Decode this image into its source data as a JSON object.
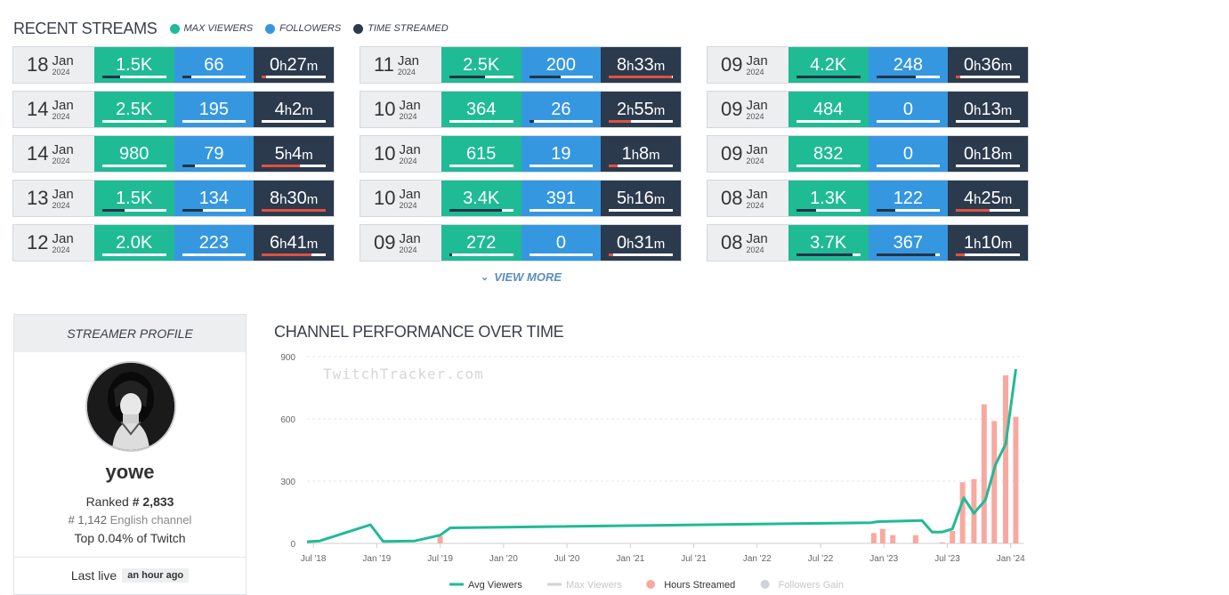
{
  "recent": {
    "title": "RECENT STREAMS",
    "legend": [
      {
        "label": "MAX VIEWERS",
        "color": "#1fbb95"
      },
      {
        "label": "FOLLOWERS",
        "color": "#3597e0"
      },
      {
        "label": "TIME STREAMED",
        "color": "#2c3a4e"
      }
    ],
    "streams": [
      {
        "day": "18",
        "mon": "Jan",
        "yr": "2024",
        "maxv": "1.5K",
        "maxv_pct": 0.28,
        "fol": "66",
        "fol_pct": 0.15,
        "h": "0",
        "m": "27",
        "time_pct": 0.06
      },
      {
        "day": "11",
        "mon": "Jan",
        "yr": "2024",
        "maxv": "2.5K",
        "maxv_pct": 0.56,
        "fol": "200",
        "fol_pct": 0.5,
        "h": "8",
        "m": "33",
        "time_pct": 0.98
      },
      {
        "day": "09",
        "mon": "Jan",
        "yr": "2024",
        "maxv": "4.2K",
        "maxv_pct": 1.0,
        "fol": "248",
        "fol_pct": 0.62,
        "h": "0",
        "m": "36",
        "time_pct": 0.07
      },
      {
        "day": "14",
        "mon": "Jan",
        "yr": "2024",
        "maxv": "2.5K",
        "maxv_pct": 0.0,
        "fol": "195",
        "fol_pct": 0.0,
        "h": "4",
        "m": "2",
        "time_pct": 0.0
      },
      {
        "day": "10",
        "mon": "Jan",
        "yr": "2024",
        "maxv": "364",
        "maxv_pct": 0.0,
        "fol": "26",
        "fol_pct": 0.07,
        "h": "2",
        "m": "55",
        "time_pct": 0.34
      },
      {
        "day": "09",
        "mon": "Jan",
        "yr": "2024",
        "maxv": "484",
        "maxv_pct": 0.0,
        "fol": "0",
        "fol_pct": 0.0,
        "h": "0",
        "m": "13",
        "time_pct": 0.0
      },
      {
        "day": "14",
        "mon": "Jan",
        "yr": "2024",
        "maxv": "980",
        "maxv_pct": 0.0,
        "fol": "79",
        "fol_pct": 0.2,
        "h": "5",
        "m": "4",
        "time_pct": 0.6
      },
      {
        "day": "10",
        "mon": "Jan",
        "yr": "2024",
        "maxv": "615",
        "maxv_pct": 0.0,
        "fol": "19",
        "fol_pct": 0.0,
        "h": "1",
        "m": "8",
        "time_pct": 0.13
      },
      {
        "day": "09",
        "mon": "Jan",
        "yr": "2024",
        "maxv": "832",
        "maxv_pct": 0.0,
        "fol": "0",
        "fol_pct": 0.0,
        "h": "0",
        "m": "18",
        "time_pct": 0.0
      },
      {
        "day": "13",
        "mon": "Jan",
        "yr": "2024",
        "maxv": "1.5K",
        "maxv_pct": 0.35,
        "fol": "134",
        "fol_pct": 0.33,
        "h": "8",
        "m": "30",
        "time_pct": 1.0
      },
      {
        "day": "10",
        "mon": "Jan",
        "yr": "2024",
        "maxv": "3.4K",
        "maxv_pct": 0.82,
        "fol": "391",
        "fol_pct": 0.0,
        "h": "5",
        "m": "16",
        "time_pct": 0.0
      },
      {
        "day": "08",
        "mon": "Jan",
        "yr": "2024",
        "maxv": "1.3K",
        "maxv_pct": 0.31,
        "fol": "122",
        "fol_pct": 0.3,
        "h": "4",
        "m": "25",
        "time_pct": 0.52
      },
      {
        "day": "12",
        "mon": "Jan",
        "yr": "2024",
        "maxv": "2.0K",
        "maxv_pct": 0.0,
        "fol": "223",
        "fol_pct": 0.0,
        "h": "6",
        "m": "41",
        "time_pct": 0.78
      },
      {
        "day": "09",
        "mon": "Jan",
        "yr": "2024",
        "maxv": "272",
        "maxv_pct": 0.05,
        "fol": "0",
        "fol_pct": 0.0,
        "h": "0",
        "m": "31",
        "time_pct": 0.06
      },
      {
        "day": "08",
        "mon": "Jan",
        "yr": "2024",
        "maxv": "3.7K",
        "maxv_pct": 0.88,
        "fol": "367",
        "fol_pct": 0.92,
        "h": "1",
        "m": "10",
        "time_pct": 0.13
      }
    ],
    "view_more": "VIEW MORE"
  },
  "profile": {
    "header": "STREAMER PROFILE",
    "name": "yowe",
    "ranked_label": "Ranked",
    "rank": "# 2,833",
    "lang_rank": "# 1,142",
    "lang_label": "English channel",
    "top": "Top 0.04% of Twitch",
    "last_live_label": "Last live",
    "last_live": "an hour ago"
  },
  "chart_title": "CHANNEL PERFORMANCE OVER TIME",
  "chart_data": {
    "type": "line",
    "watermark": "TwitchTracker.com",
    "y_ticks": [
      0,
      300,
      600,
      900
    ],
    "ylim": [
      0,
      900
    ],
    "x_ticks": [
      "Jul '18",
      "Jan '19",
      "Jul '19",
      "Jan '20",
      "Jul '20",
      "Jan '21",
      "Jul '21",
      "Jan '22",
      "Jul '22",
      "Jan '23",
      "Jul '23",
      "Jan '24"
    ],
    "x_range": [
      2018.45,
      2024.1
    ],
    "series": [
      {
        "name": "Avg Viewers",
        "color": "#1fbb95",
        "kind": "line",
        "points": [
          [
            2018.45,
            8
          ],
          [
            2018.55,
            12
          ],
          [
            2018.95,
            90
          ],
          [
            2019.05,
            10
          ],
          [
            2019.3,
            12
          ],
          [
            2019.5,
            40
          ],
          [
            2019.58,
            75
          ],
          [
            2022.9,
            100
          ],
          [
            2022.95,
            105
          ],
          [
            2023.3,
            110
          ],
          [
            2023.38,
            55
          ],
          [
            2023.46,
            55
          ],
          [
            2023.54,
            70
          ],
          [
            2023.63,
            220
          ],
          [
            2023.71,
            145
          ],
          [
            2023.8,
            210
          ],
          [
            2023.88,
            380
          ],
          [
            2023.96,
            480
          ],
          [
            2024.04,
            840
          ]
        ]
      },
      {
        "name": "Max Viewers",
        "color": "#cfd2d6",
        "kind": "hidden",
        "points": []
      },
      {
        "name": "Hours Streamed",
        "color": "#f7a9a0",
        "kind": "bar",
        "points": [
          [
            2019.5,
            35
          ],
          [
            2022.92,
            50
          ],
          [
            2022.99,
            70
          ],
          [
            2023.07,
            40
          ],
          [
            2023.25,
            40
          ],
          [
            2023.46,
            5
          ],
          [
            2023.54,
            60
          ],
          [
            2023.62,
            295
          ],
          [
            2023.71,
            310
          ],
          [
            2023.79,
            670
          ],
          [
            2023.87,
            590
          ],
          [
            2023.96,
            810
          ],
          [
            2024.04,
            610
          ]
        ]
      },
      {
        "name": "Followers Gain",
        "color": "#cfd2d6",
        "kind": "hidden",
        "points": []
      }
    ]
  }
}
